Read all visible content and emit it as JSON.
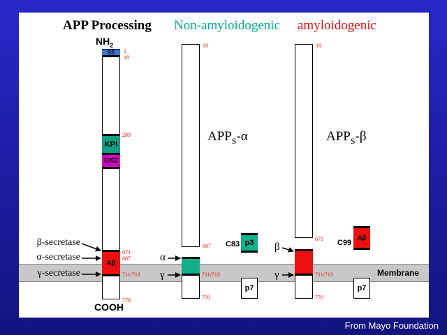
{
  "titles": {
    "app_processing": "APP Processing",
    "non_amyloidogenic": "Non-amyloidogenic",
    "amyloidogenic": "amyloidogenic"
  },
  "colors": {
    "non_amyloidogenic": "#00b08a",
    "amyloidogenic": "#e01010",
    "ss": "#3a78d8",
    "kpi": "#10a080",
    "ox2": "#d000c0",
    "abeta": "#ee1010",
    "p3": "#10b088"
  },
  "full_app": {
    "nh2": "NH",
    "nh2_sub": "2",
    "cooh": "COOH",
    "ss": "SS",
    "kpi": "KPI",
    "ox2": "OX2",
    "abeta": "Aβ",
    "pos_1": "1",
    "pos_18": "18",
    "pos_289": "289",
    "pos_671": "671",
    "pos_687": "687",
    "pos_711_713": "711/713",
    "pos_770": "770"
  },
  "secretases": {
    "beta": "β-secretase",
    "alpha": "α-secretase",
    "gamma": "γ-secretase"
  },
  "non_amyloid": {
    "apps_main": "APP",
    "apps_sub": "S",
    "apps_suffix": "-α",
    "pos_18": "18",
    "pos_687": "687",
    "pos_711_713": "711/713",
    "pos_770": "770",
    "alpha": "α",
    "gamma": "γ",
    "c83": "C83",
    "p3": "p3",
    "p7": "p7"
  },
  "amyloid": {
    "apps_main": "APP",
    "apps_sub": "S",
    "apps_suffix": "-β",
    "pos_18": "18",
    "pos_671": "671",
    "pos_711_713": "711/713",
    "pos_770": "770",
    "beta": "β",
    "gamma": "γ",
    "c99": "C99",
    "abeta": "Aβ",
    "p7": "p7"
  },
  "membrane": "Membrane",
  "footer": "From Mayo Foundation"
}
